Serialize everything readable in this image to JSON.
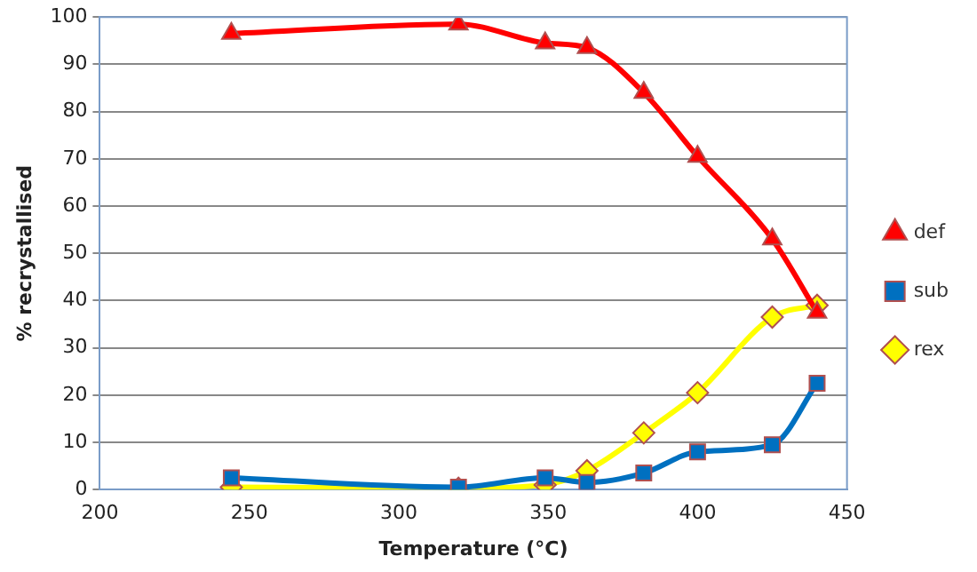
{
  "chart_data": {
    "type": "line",
    "xlabel": "Temperature (°C)",
    "ylabel": "% recrystallised",
    "x": [
      244,
      320,
      349,
      363,
      382,
      400,
      425,
      440
    ],
    "xlim": [
      200,
      450
    ],
    "xticks": [
      200,
      250,
      300,
      350,
      400,
      450
    ],
    "ylim": [
      0,
      100
    ],
    "yticks": [
      0,
      10,
      20,
      30,
      40,
      50,
      60,
      70,
      80,
      90,
      100
    ],
    "grid": "y",
    "legend": "right",
    "series": [
      {
        "name": "rex",
        "color": "#ffff00",
        "marker": "diamond",
        "values": [
          0.5,
          0.3,
          1,
          4,
          12,
          20.5,
          36.5,
          39
        ]
      },
      {
        "name": "sub",
        "color": "#0070c0",
        "marker": "square",
        "values": [
          2.5,
          0.5,
          2.5,
          1.5,
          3.5,
          8,
          9.5,
          22.5
        ]
      },
      {
        "name": "def",
        "color": "#ff0000",
        "marker": "triangle",
        "values": [
          96.5,
          98.5,
          94.5,
          93.5,
          84,
          70.5,
          53,
          37.5
        ]
      }
    ]
  }
}
